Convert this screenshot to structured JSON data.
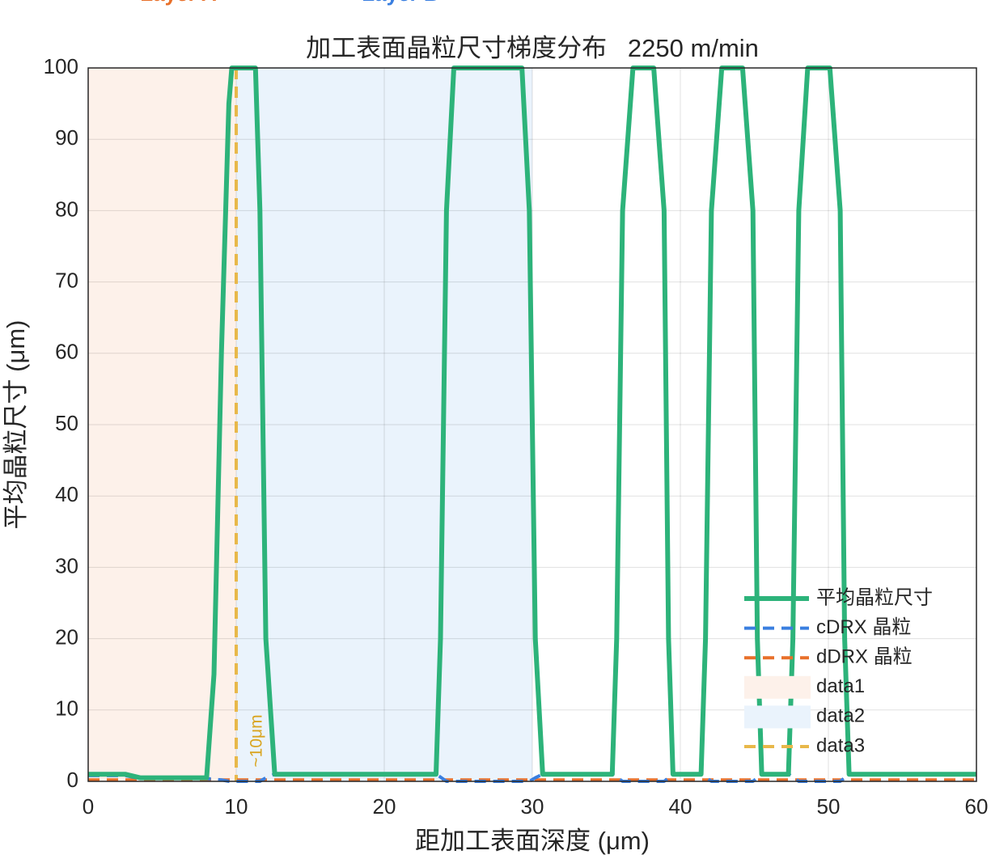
{
  "chart_data": {
    "type": "line",
    "title": "加工表面晶粒尺寸梯度分布   2250 m/min",
    "x_label": "距加工表面深度 (μm)",
    "y_label": "平均晶粒尺寸 (μm)",
    "x": [
      0,
      2.5,
      3.5,
      8,
      8.5,
      9,
      9.5,
      9.7,
      11.3,
      11.6,
      12,
      12.6,
      23.5,
      23.8,
      24.2,
      24.7,
      29.3,
      29.8,
      30.2,
      30.7,
      35.4,
      35.7,
      36.1,
      36.8,
      38.2,
      38.9,
      39.2,
      39.5,
      41.4,
      41.7,
      42.1,
      42.8,
      44.2,
      44.9,
      45.2,
      45.5,
      47.3,
      47.6,
      48,
      48.6,
      50.1,
      50.8,
      51.1,
      51.4,
      60
    ],
    "series": [
      {
        "name": "平均晶粒尺寸",
        "color": "#2db37a",
        "dash": false,
        "values": [
          1,
          1,
          0.5,
          0.5,
          15,
          60,
          95,
          100,
          100,
          80,
          20,
          1,
          1,
          20,
          80,
          100,
          100,
          80,
          20,
          1,
          1,
          20,
          80,
          100,
          100,
          80,
          20,
          1,
          1,
          20,
          80,
          100,
          100,
          80,
          20,
          1,
          1,
          20,
          80,
          100,
          100,
          80,
          20,
          1,
          1
        ]
      },
      {
        "name": "cDRX 晶粒",
        "color": "#3a7fe0",
        "dash": true,
        "values": [
          0.8,
          0.8,
          0.4,
          0.4,
          0.3,
          0.2,
          0,
          0,
          0,
          0,
          0.5,
          1,
          1,
          0.6,
          0,
          0,
          0,
          0,
          0.5,
          1,
          1,
          0.6,
          0,
          0,
          0,
          0,
          0.5,
          1,
          1,
          0.6,
          0,
          0,
          0,
          0,
          0.5,
          1,
          1,
          0.6,
          0,
          0,
          0,
          0,
          0.5,
          1,
          1
        ]
      },
      {
        "name": "dDRX 晶粒",
        "color": "#e8702a",
        "dash": true,
        "values": [
          0.2,
          0.2,
          0.2,
          0.2,
          0.2,
          0.2,
          0.2,
          0.2,
          0.2,
          0.2,
          0.2,
          0.2,
          0.2,
          0.2,
          0.2,
          0.2,
          0.2,
          0.2,
          0.2,
          0.2,
          0.2,
          0.2,
          0.2,
          0.2,
          0.2,
          0.2,
          0.2,
          0.2,
          0.2,
          0.2,
          0.2,
          0.2,
          0.2,
          0.2,
          0.2,
          0.2,
          0.2,
          0.2,
          0.2,
          0.2,
          0.2,
          0.2,
          0.2,
          0.2,
          0.2
        ]
      }
    ],
    "regions": [
      {
        "name": "data1",
        "label": "Layer A",
        "range": [
          0,
          10
        ],
        "color": "#fdf1ea",
        "label_color": "#e8702a"
      },
      {
        "name": "data2",
        "label": "Layer B",
        "range": [
          10,
          30
        ],
        "color": "#eaf3fc",
        "label_color": "#3a7fe0"
      }
    ],
    "vline": {
      "name": "data3",
      "x": 10,
      "color": "#e8b84a",
      "annotation": "~10μm",
      "annotation_color": "#d9a520"
    },
    "xlim": [
      0,
      60
    ],
    "xticks": [
      0,
      10,
      20,
      30,
      40,
      50,
      60
    ],
    "ylim": [
      0,
      100
    ],
    "yticks": [
      0,
      10,
      20,
      30,
      40,
      50,
      60,
      70,
      80,
      90,
      100
    ],
    "grid": true,
    "legend": "lower right"
  }
}
